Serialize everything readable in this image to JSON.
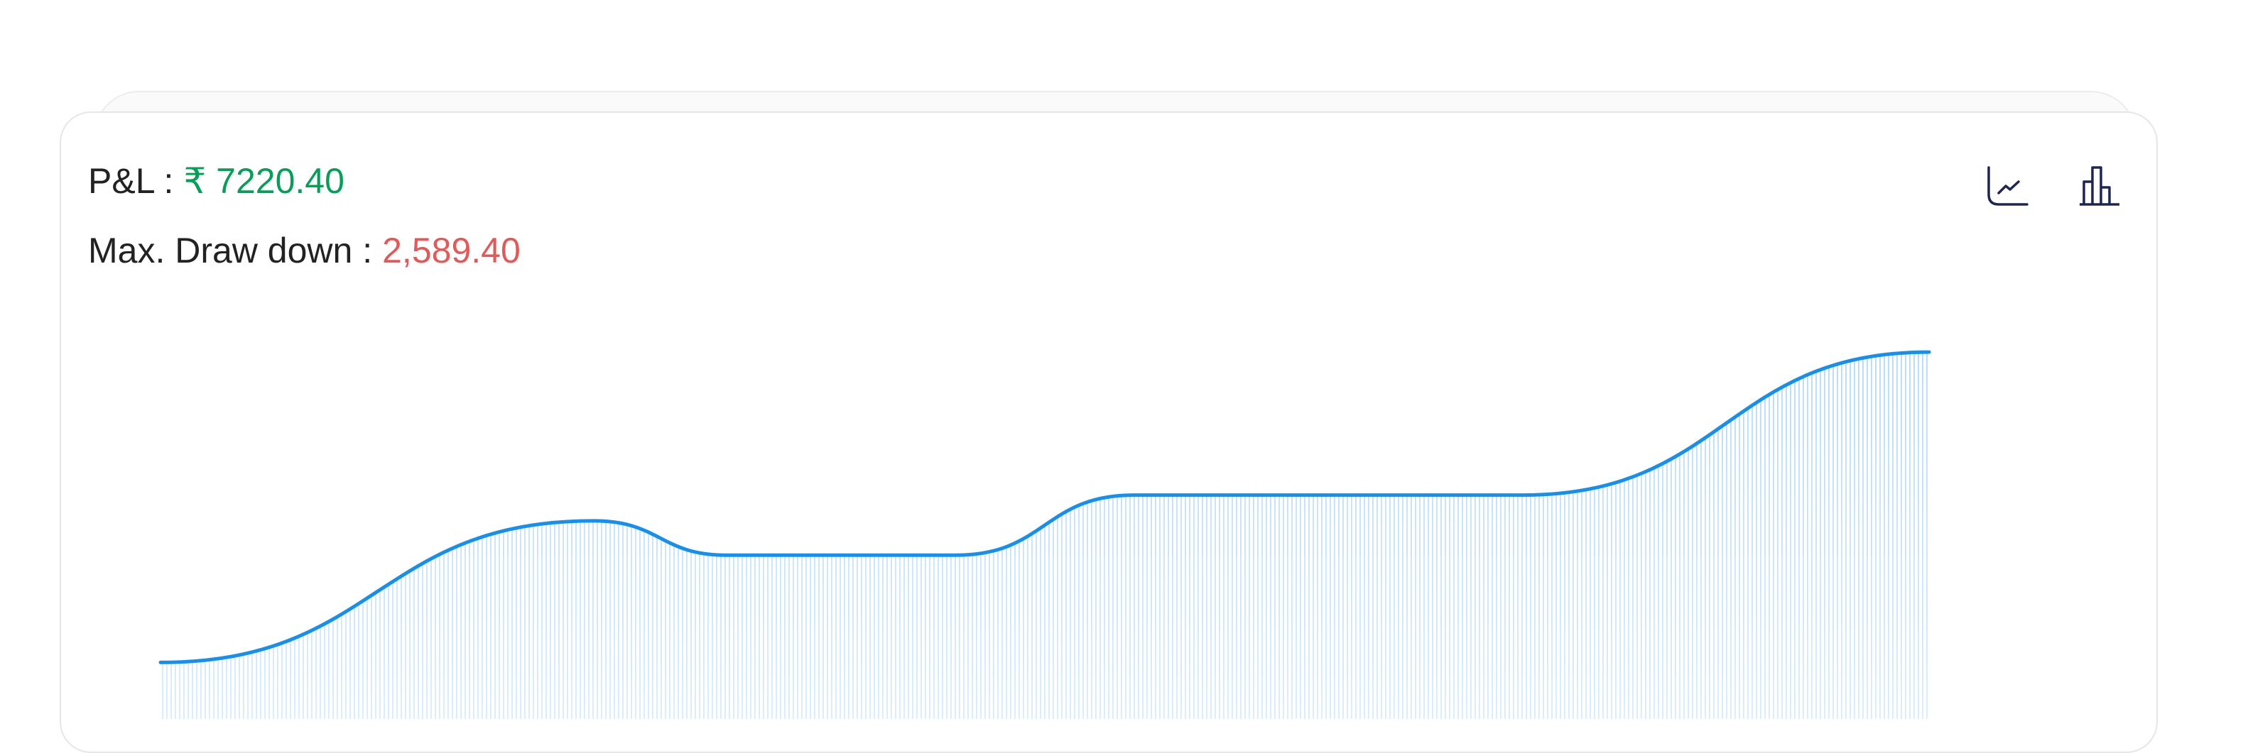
{
  "summary": {
    "pnl_label": "P&L :",
    "pnl_value": "₹ 7220.40",
    "drawdown_label": "Max. Draw down :",
    "drawdown_value": "2,589.40"
  },
  "chart_data": {
    "type": "line",
    "x": [
      0,
      24.5,
      32,
      45,
      55,
      77,
      100
    ],
    "xlim": [
      0,
      100
    ],
    "series": [
      {
        "color": "#1a8fe8",
        "values": [
          38,
          137,
          113,
          113,
          155,
          155,
          255
        ]
      }
    ],
    "ylim": [
      0,
      260
    ]
  }
}
